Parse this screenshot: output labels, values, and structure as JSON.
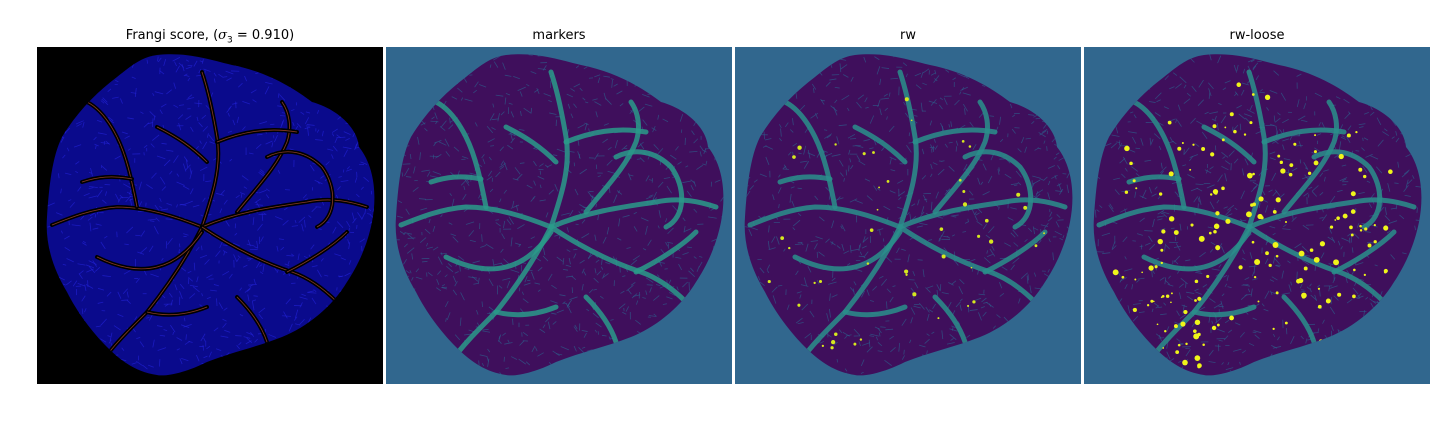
{
  "panels": [
    {
      "title": "Frangi score, ",
      "title_math": {
        "symbol": "σ",
        "subscript": "3",
        "equals": " = 0.910"
      },
      "background": "#000000",
      "fill": "#0a0a8c",
      "vessel": "#000000",
      "highlight": "#e0623a"
    },
    {
      "title": "markers",
      "background": "#31678e",
      "fill": "#3f0f5c",
      "vessel": "#2a9a8a",
      "highlight": "#2aa38c"
    },
    {
      "title": "rw",
      "background": "#31678e",
      "fill": "#3f0f5c",
      "vessel": "#2a8f8b",
      "highlight": "#d7e81f"
    },
    {
      "title": "rw-loose",
      "background": "#31678e",
      "fill": "#3f0f5c",
      "vessel": "#2a8f8b",
      "highlight": "#f0f51a"
    }
  ]
}
